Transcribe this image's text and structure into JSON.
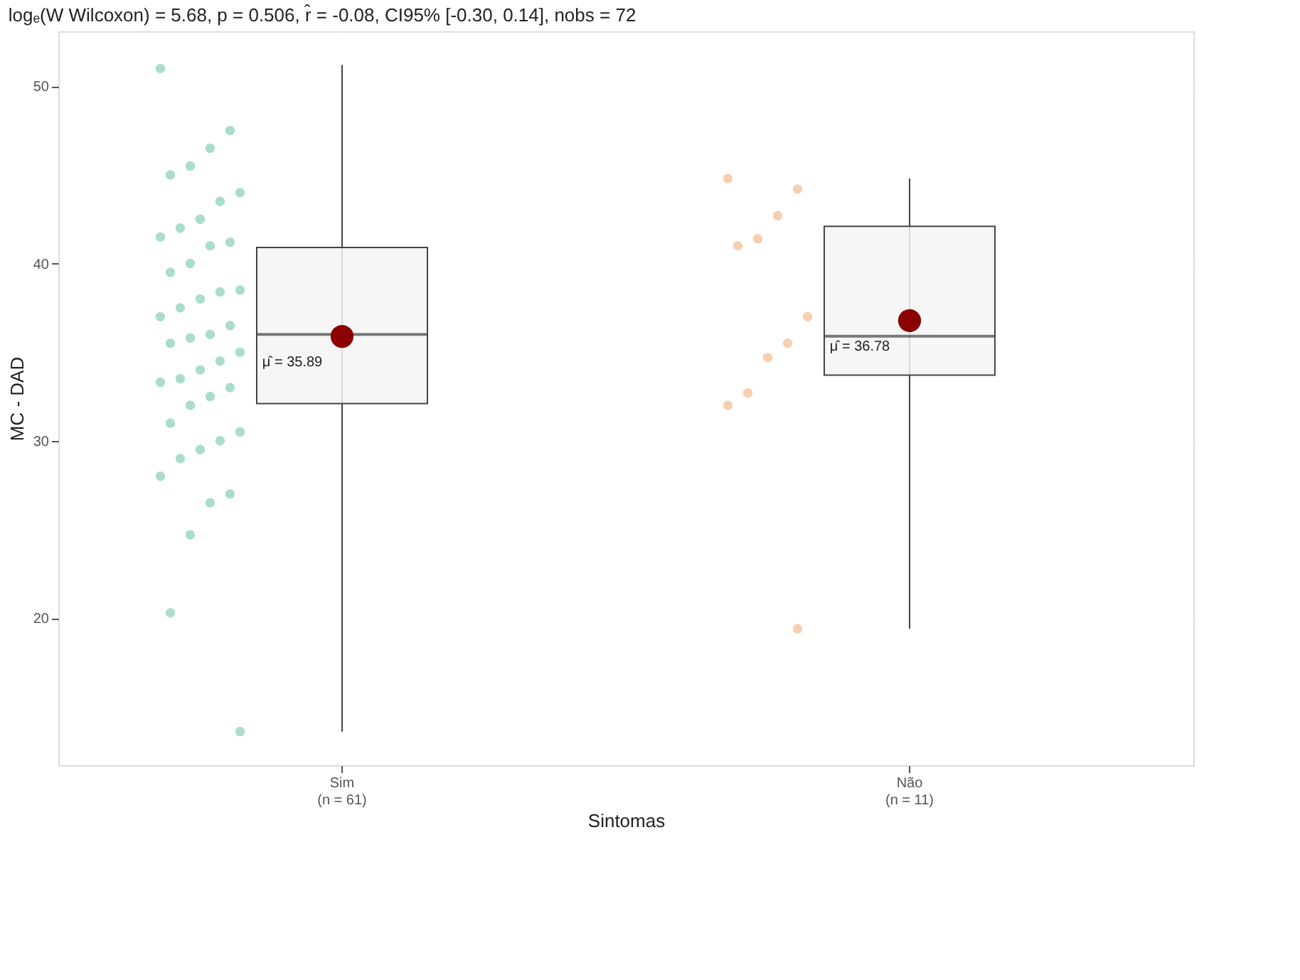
{
  "chart_data": {
    "type": "box",
    "title": "logₑ(W Wilcoxon) = 5.68, p = 0.506, r̂ = -0.08, CI95% [-0.30, 0.14], nobs = 72",
    "xlabel": "Sintomas",
    "ylabel": "MC - DAD",
    "categories": [
      "Sim\n(n = 61)",
      "Não\n(n = 11)"
    ],
    "boxes": [
      {
        "low": 13.6,
        "q1": 32.1,
        "median": 36.0,
        "q3": 40.9,
        "high": 51.2,
        "mean": 35.89
      },
      {
        "low": 19.4,
        "q1": 33.7,
        "median": 35.9,
        "q3": 42.1,
        "high": 44.8,
        "mean": 36.78
      }
    ],
    "series": [
      {
        "type": "scatter",
        "color": "#8fd1bb",
        "x": [
          "Sim\n(n = 61)",
          "Sim\n(n = 61)",
          "Sim\n(n = 61)",
          "Sim\n(n = 61)",
          "Sim\n(n = 61)",
          "Sim\n(n = 61)",
          "Sim\n(n = 61)",
          "Sim\n(n = 61)",
          "Sim\n(n = 61)",
          "Sim\n(n = 61)",
          "Sim\n(n = 61)",
          "Sim\n(n = 61)",
          "Sim\n(n = 61)",
          "Sim\n(n = 61)",
          "Sim\n(n = 61)",
          "Sim\n(n = 61)",
          "Sim\n(n = 61)",
          "Sim\n(n = 61)",
          "Sim\n(n = 61)",
          "Sim\n(n = 61)",
          "Sim\n(n = 61)",
          "Sim\n(n = 61)",
          "Sim\n(n = 61)",
          "Sim\n(n = 61)",
          "Sim\n(n = 61)",
          "Sim\n(n = 61)",
          "Sim\n(n = 61)",
          "Sim\n(n = 61)",
          "Sim\n(n = 61)",
          "Sim\n(n = 61)",
          "Sim\n(n = 61)",
          "Sim\n(n = 61)",
          "Sim\n(n = 61)",
          "Sim\n(n = 61)",
          "Sim\n(n = 61)",
          "Sim\n(n = 61)",
          "Sim\n(n = 61)",
          "Sim\n(n = 61)",
          "Sim\n(n = 61)",
          "Sim\n(n = 61)",
          "Sim\n(n = 61)",
          "Sim\n(n = 61)"
        ],
        "values": [
          51.0,
          47.5,
          46.5,
          45.5,
          45.0,
          44.0,
          43.5,
          42.5,
          42.0,
          41.5,
          41.2,
          41.0,
          40.0,
          39.5,
          38.5,
          38.4,
          38.0,
          37.5,
          37.0,
          36.5,
          36.0,
          35.8,
          35.5,
          35.0,
          34.5,
          34.0,
          33.5,
          33.3,
          33.0,
          32.5,
          32.0,
          31.0,
          30.5,
          30.0,
          29.5,
          29.0,
          28.0,
          27.0,
          26.5,
          24.7,
          20.3,
          13.6
        ]
      },
      {
        "type": "scatter",
        "color": "#f5bf93",
        "x": [
          "Não\n(n = 11)",
          "Não\n(n = 11)",
          "Não\n(n = 11)",
          "Não\n(n = 11)",
          "Não\n(n = 11)",
          "Não\n(n = 11)",
          "Não\n(n = 11)",
          "Não\n(n = 11)",
          "Não\n(n = 11)",
          "Não\n(n = 11)",
          "Não\n(n = 11)"
        ],
        "values": [
          44.8,
          44.2,
          42.7,
          41.4,
          41.0,
          37.0,
          35.5,
          34.7,
          32.7,
          32.0,
          19.4
        ]
      }
    ],
    "annotations": [
      {
        "text": "μ̂ = 35.89",
        "x": "Sim\n(n = 61)",
        "y": 35.89
      },
      {
        "text": "μ̂ = 36.78",
        "x": "Não\n(n = 11)",
        "y": 36.78
      }
    ],
    "ylim": [
      11.7,
      53.1
    ],
    "yticks": [
      20,
      30,
      40,
      50
    ],
    "grid": true
  }
}
